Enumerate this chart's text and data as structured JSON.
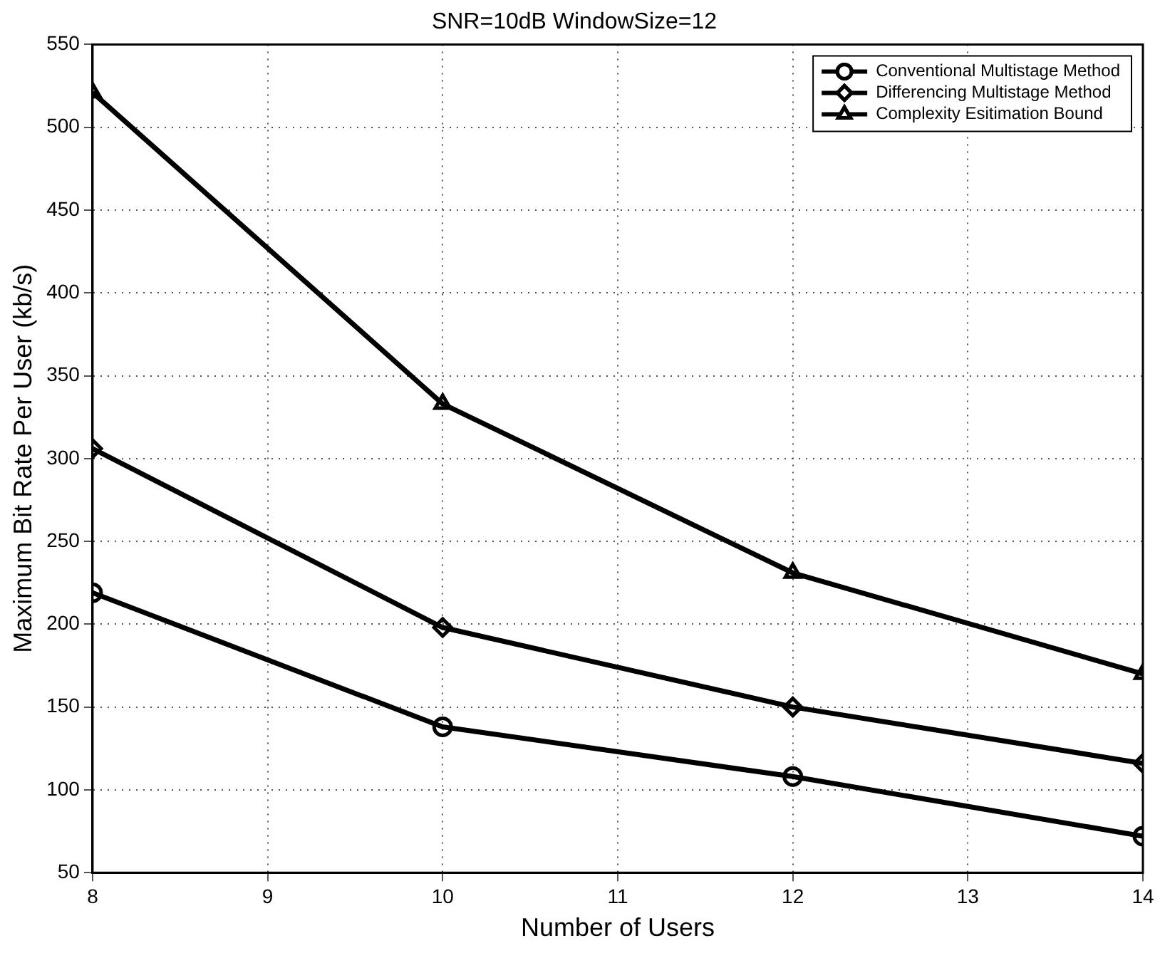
{
  "chart_data": {
    "type": "line",
    "title": "SNR=10dB WindowSize=12",
    "xlabel": "Number of Users",
    "ylabel": "Maximum Bit Rate Per User (kb/s)",
    "x": [
      8,
      10,
      12,
      14
    ],
    "series": [
      {
        "name": "Conventional Multistage Method",
        "color": "#000000",
        "marker": "circle",
        "values": [
          219,
          138,
          108,
          72
        ]
      },
      {
        "name": "Differencing Multistage Method",
        "color": "#000000",
        "marker": "diamond",
        "values": [
          306,
          198,
          150,
          116
        ]
      },
      {
        "name": "Complexity Esitimation Bound",
        "color": "#000000",
        "marker": "triangle",
        "values": [
          521,
          333,
          231,
          170
        ]
      }
    ],
    "xlim": [
      8,
      14
    ],
    "xticks": [
      8,
      9,
      10,
      11,
      12,
      13,
      14
    ],
    "ylim": [
      50,
      550
    ],
    "yticks": [
      50,
      100,
      150,
      200,
      250,
      300,
      350,
      400,
      450,
      500,
      550
    ],
    "grid": true,
    "legend": "top right",
    "line_style": "solid"
  }
}
